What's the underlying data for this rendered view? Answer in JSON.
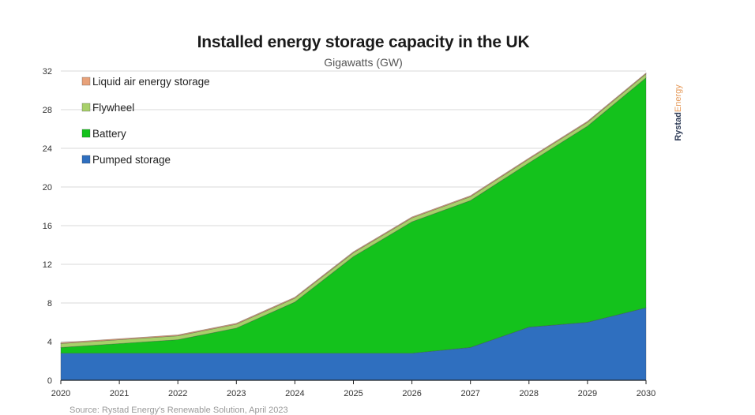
{
  "chart_data": {
    "type": "area",
    "stacked": true,
    "title": "Installed energy storage capacity in the UK",
    "subtitle": "Gigawatts (GW)",
    "x": [
      2020,
      2021,
      2022,
      2023,
      2024,
      2025,
      2026,
      2027,
      2028,
      2029,
      2030
    ],
    "ylim": [
      0,
      32
    ],
    "yticks": [
      0,
      4,
      8,
      12,
      16,
      20,
      24,
      28,
      32
    ],
    "legend_position": "top-left",
    "series": [
      {
        "name": "Pumped storage",
        "color": "#2f6fbf",
        "values": [
          2.8,
          2.8,
          2.8,
          2.8,
          2.8,
          2.8,
          2.8,
          3.4,
          5.5,
          6.0,
          7.5
        ]
      },
      {
        "name": "Battery",
        "color": "#14c21c",
        "values": [
          0.6,
          1.0,
          1.4,
          2.6,
          5.3,
          10.0,
          13.6,
          15.2,
          17.0,
          20.3,
          23.8
        ]
      },
      {
        "name": "Flywheel",
        "color": "#a8d06a",
        "values": [
          0.4,
          0.4,
          0.4,
          0.4,
          0.4,
          0.4,
          0.4,
          0.4,
          0.4,
          0.4,
          0.4
        ]
      },
      {
        "name": "Liquid air energy storage",
        "color": "#e8a27a",
        "values": [
          0.1,
          0.1,
          0.1,
          0.1,
          0.1,
          0.1,
          0.1,
          0.1,
          0.1,
          0.1,
          0.1
        ]
      }
    ]
  },
  "brand": {
    "part1": "Rystad",
    "part2": "Energy"
  },
  "source": "Source: Rystad Energy's Renewable Solution, April 2023"
}
